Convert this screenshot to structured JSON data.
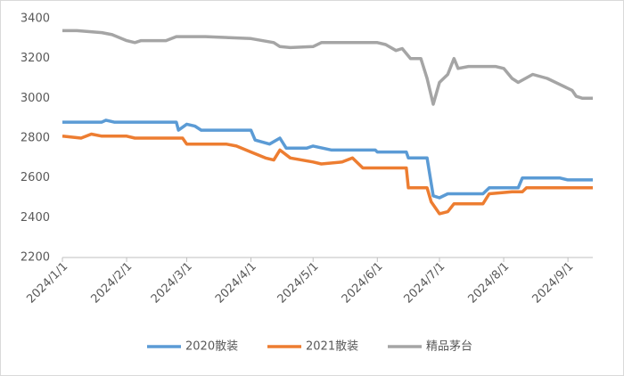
{
  "chart_data": {
    "type": "line",
    "xlim": [
      "2024/1/1",
      "2024/9/13"
    ],
    "xticks": [
      "2024/1/1",
      "2024/2/1",
      "2024/3/1",
      "2024/4/1",
      "2024/5/1",
      "2024/6/1",
      "2024/7/1",
      "2024/8/1",
      "2024/9/1"
    ],
    "ylim": [
      2200,
      3400
    ],
    "yticks": [
      2200,
      2400,
      2600,
      2800,
      3000,
      3200,
      3400
    ],
    "grid": false,
    "legend": "bottom",
    "series": [
      {
        "name": "2020散装",
        "color": "#5b9bd5",
        "x": [
          "2024/1/1",
          "2024/1/20",
          "2024/1/22",
          "2024/1/26",
          "2024/2/25",
          "2024/2/26",
          "2024/3/1",
          "2024/3/5",
          "2024/3/8",
          "2024/4/1",
          "2024/4/3",
          "2024/4/10",
          "2024/4/15",
          "2024/4/18",
          "2024/4/28",
          "2024/5/1",
          "2024/5/10",
          "2024/5/31",
          "2024/6/1",
          "2024/6/15",
          "2024/6/16",
          "2024/6/25",
          "2024/6/28",
          "2024/7/1",
          "2024/7/5",
          "2024/7/22",
          "2024/7/25",
          "2024/8/8",
          "2024/8/10",
          "2024/8/28",
          "2024/9/1",
          "2024/9/13"
        ],
        "values": [
          2880,
          2880,
          2890,
          2880,
          2880,
          2840,
          2870,
          2860,
          2840,
          2840,
          2790,
          2770,
          2800,
          2750,
          2750,
          2760,
          2740,
          2740,
          2730,
          2730,
          2700,
          2700,
          2510,
          2500,
          2520,
          2520,
          2550,
          2550,
          2600,
          2600,
          2590,
          2590
        ]
      },
      {
        "name": "2021散装",
        "color": "#ed7d31",
        "x": [
          "2024/1/1",
          "2024/1/10",
          "2024/1/15",
          "2024/1/20",
          "2024/2/1",
          "2024/2/5",
          "2024/2/28",
          "2024/3/1",
          "2024/3/20",
          "2024/3/25",
          "2024/4/1",
          "2024/4/8",
          "2024/4/12",
          "2024/4/15",
          "2024/4/20",
          "2024/5/1",
          "2024/5/5",
          "2024/5/15",
          "2024/5/20",
          "2024/5/25",
          "2024/6/15",
          "2024/6/16",
          "2024/6/25",
          "2024/6/27",
          "2024/7/1",
          "2024/7/5",
          "2024/7/8",
          "2024/7/22",
          "2024/7/25",
          "2024/8/5",
          "2024/8/10",
          "2024/8/12",
          "2024/9/13"
        ],
        "values": [
          2810,
          2800,
          2820,
          2810,
          2810,
          2800,
          2800,
          2770,
          2770,
          2760,
          2730,
          2700,
          2690,
          2740,
          2700,
          2680,
          2670,
          2680,
          2700,
          2650,
          2650,
          2550,
          2550,
          2480,
          2420,
          2430,
          2470,
          2470,
          2520,
          2530,
          2530,
          2550,
          2550
        ]
      },
      {
        "name": "精品茅台",
        "color": "#a5a5a5",
        "x": [
          "2024/1/1",
          "2024/1/8",
          "2024/1/20",
          "2024/1/25",
          "2024/2/1",
          "2024/2/5",
          "2024/2/8",
          "2024/2/20",
          "2024/2/25",
          "2024/3/10",
          "2024/4/1",
          "2024/4/12",
          "2024/4/15",
          "2024/4/20",
          "2024/5/1",
          "2024/5/5",
          "2024/6/1",
          "2024/6/5",
          "2024/6/10",
          "2024/6/13",
          "2024/6/17",
          "2024/6/22",
          "2024/6/25",
          "2024/6/28",
          "2024/7/1",
          "2024/7/5",
          "2024/7/8",
          "2024/7/10",
          "2024/7/15",
          "2024/7/28",
          "2024/8/1",
          "2024/8/5",
          "2024/8/8",
          "2024/8/15",
          "2024/8/22",
          "2024/8/28",
          "2024/9/3",
          "2024/9/5",
          "2024/9/8",
          "2024/9/13"
        ],
        "values": [
          3340,
          3340,
          3330,
          3320,
          3290,
          3280,
          3290,
          3290,
          3310,
          3310,
          3300,
          3280,
          3260,
          3255,
          3260,
          3280,
          3280,
          3270,
          3240,
          3250,
          3200,
          3200,
          3100,
          2970,
          3080,
          3120,
          3200,
          3150,
          3160,
          3160,
          3150,
          3100,
          3080,
          3120,
          3100,
          3070,
          3040,
          3010,
          3000,
          3000
        ]
      }
    ]
  }
}
